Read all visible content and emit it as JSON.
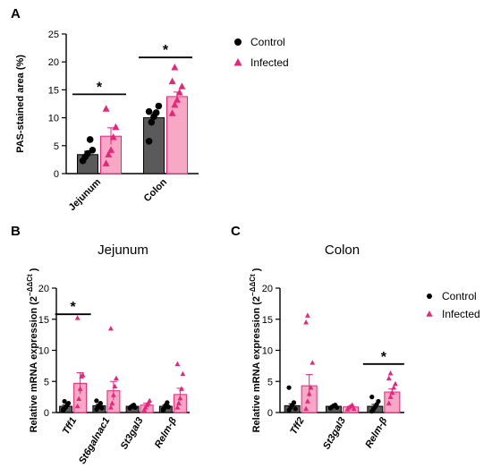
{
  "panel_labels": [
    "A",
    "B",
    "C"
  ],
  "colors": {
    "control": "#5a5a5a",
    "infected": "#f7a8c4",
    "infected_marker": "#e8257a",
    "control_marker": "#000000"
  },
  "chart_data": [
    {
      "panel": "A",
      "type": "bar",
      "title": "",
      "ylabel": "PAS-stained area (%)",
      "ylim": [
        0,
        25
      ],
      "yticks": [
        0,
        5,
        10,
        15,
        20,
        25
      ],
      "categories": [
        "Jejunum",
        "Colon"
      ],
      "italic_categories": false,
      "series": [
        {
          "name": "Control",
          "values": [
            3.4,
            10.0
          ],
          "errors": [
            0.6,
            0.9
          ],
          "points": [
            [
              2.3,
              3.0,
              3.6,
              6.1,
              4.2
            ],
            [
              5.8,
              9.2,
              10.2,
              10.9,
              12.1,
              11.1
            ]
          ]
        },
        {
          "name": "Infected",
          "values": [
            6.7,
            13.8
          ],
          "errors": [
            1.5,
            0.8
          ],
          "points": [
            [
              1.8,
              3.4,
              4.2,
              6.5,
              8.3,
              11.6
            ],
            [
              10.8,
              12.3,
              13.2,
              14.5,
              15.6,
              16.5,
              19.0
            ]
          ]
        }
      ],
      "significance": [
        {
          "category": 0,
          "label": "*",
          "y": 14.2
        },
        {
          "category": 1,
          "label": "*",
          "y": 20.8
        }
      ],
      "legend": {
        "placement": "right",
        "entries": [
          "Control",
          "Infected"
        ]
      }
    },
    {
      "panel": "B",
      "type": "bar",
      "title": "Jejunum",
      "ylabel": "Relative mRNA expression (2",
      "ylabel_sup": "−ΔΔCt",
      "ylabel_close": ")",
      "ylim": [
        0,
        20
      ],
      "yticks": [
        0,
        5,
        10,
        15,
        20
      ],
      "categories": [
        "Tff1",
        "St6galnac1",
        "St3gal3",
        "Relm-β"
      ],
      "italic_categories": true,
      "series": [
        {
          "name": "Control",
          "values": [
            1.0,
            1.1,
            1.0,
            1.0
          ],
          "errors": [
            0.2,
            0.2,
            0.1,
            0.2
          ],
          "points": [
            [
              0.3,
              0.6,
              0.9,
              1.2,
              1.5,
              0.5,
              1.8
            ],
            [
              0.5,
              0.8,
              1.2,
              1.5,
              0.7,
              1.9
            ],
            [
              0.7,
              0.9,
              1.1,
              1.2,
              0.8
            ],
            [
              0.3,
              0.7,
              1.2,
              1.6,
              0.9,
              0.5
            ]
          ]
        },
        {
          "name": "Infected",
          "values": [
            4.7,
            3.5,
            1.2,
            2.9
          ],
          "errors": [
            1.7,
            1.5,
            0.3,
            1.0
          ],
          "points": [
            [
              1.0,
              2.2,
              3.8,
              5.8,
              6.0,
              15.2
            ],
            [
              0.8,
              1.5,
              2.8,
              4.2,
              5.5,
              13.5
            ],
            [
              0.4,
              0.8,
              1.2,
              1.5,
              1.9
            ],
            [
              0.8,
              1.5,
              2.3,
              3.8,
              6.2,
              7.8
            ]
          ]
        }
      ],
      "significance": [
        {
          "category": 0,
          "label": "*",
          "y": 15.8
        }
      ]
    },
    {
      "panel": "C",
      "type": "bar",
      "title": "Colon",
      "ylabel": "Relative mRNA expression (2",
      "ylabel_sup": "−ΔΔCt",
      "ylabel_close": ")",
      "ylim": [
        0,
        20
      ],
      "yticks": [
        0,
        5,
        10,
        15,
        20
      ],
      "categories": [
        "Tff2",
        "St3gal3",
        "Relm-β"
      ],
      "italic_categories": true,
      "series": [
        {
          "name": "Control",
          "values": [
            1.1,
            1.0,
            1.0
          ],
          "errors": [
            0.3,
            0.1,
            0.3
          ],
          "points": [
            [
              0.4,
              0.8,
              1.2,
              1.6,
              0.6,
              4.0
            ],
            [
              0.7,
              0.9,
              1.1,
              1.2,
              0.8
            ],
            [
              0.2,
              0.5,
              0.9,
              1.3,
              1.8,
              2.5,
              0.6
            ]
          ]
        },
        {
          "name": "Infected",
          "values": [
            4.3,
            0.9,
            3.3
          ],
          "errors": [
            1.8,
            0.1,
            0.5
          ],
          "points": [
            [
              0.6,
              1.8,
              3.0,
              4.0,
              8.0,
              14.5,
              15.6
            ],
            [
              0.5,
              0.8,
              1.0,
              1.2,
              0.6
            ],
            [
              1.5,
              2.5,
              3.2,
              4.0,
              4.6,
              5.5,
              6.3
            ]
          ]
        }
      ],
      "significance": [
        {
          "category": 2,
          "label": "*",
          "y": 7.8
        }
      ],
      "legend": {
        "placement": "right",
        "entries": [
          "Control",
          "Infected"
        ]
      }
    }
  ]
}
